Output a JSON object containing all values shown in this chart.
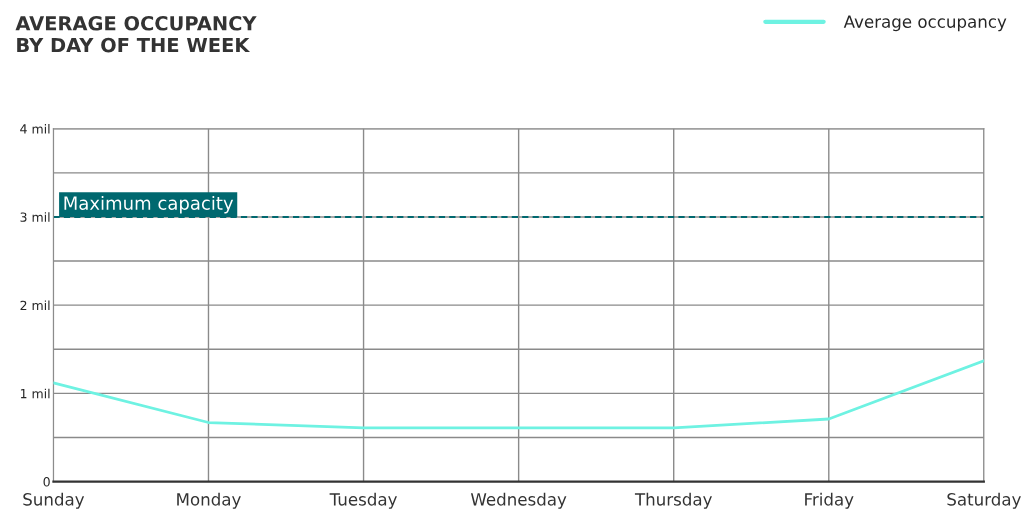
{
  "chart_data": {
    "type": "line",
    "title": "AVERAGE OCCUPANCY\nBY DAY OF THE WEEK",
    "categories": [
      "Sunday",
      "Monday",
      "Tuesday",
      "Wednesday",
      "Thursday",
      "Friday",
      "Saturday"
    ],
    "series": [
      {
        "name": "Average occupancy",
        "color": "#6ef2e2",
        "values": [
          1.12,
          0.67,
          0.61,
          0.61,
          0.61,
          0.71,
          1.37
        ]
      }
    ],
    "ylim": [
      0,
      4
    ],
    "yticks": [
      {
        "value": 0,
        "label": "0"
      },
      {
        "value": 0.5,
        "label": null
      },
      {
        "value": 1,
        "label": "1 mil"
      },
      {
        "value": 1.5,
        "label": null
      },
      {
        "value": 2,
        "label": "2 mil"
      },
      {
        "value": 2.5,
        "label": null
      },
      {
        "value": 3,
        "label": "3 mil"
      },
      {
        "value": 3.5,
        "label": null
      },
      {
        "value": 4,
        "label": "4 mil"
      }
    ],
    "ref_lines": [
      {
        "axis": "y",
        "value": 3,
        "label": "Maximum capacity",
        "color": "#00686f",
        "line_style": "dashed"
      }
    ],
    "grid": true,
    "legend": "top right",
    "marker": "none",
    "line_style": "solid"
  }
}
